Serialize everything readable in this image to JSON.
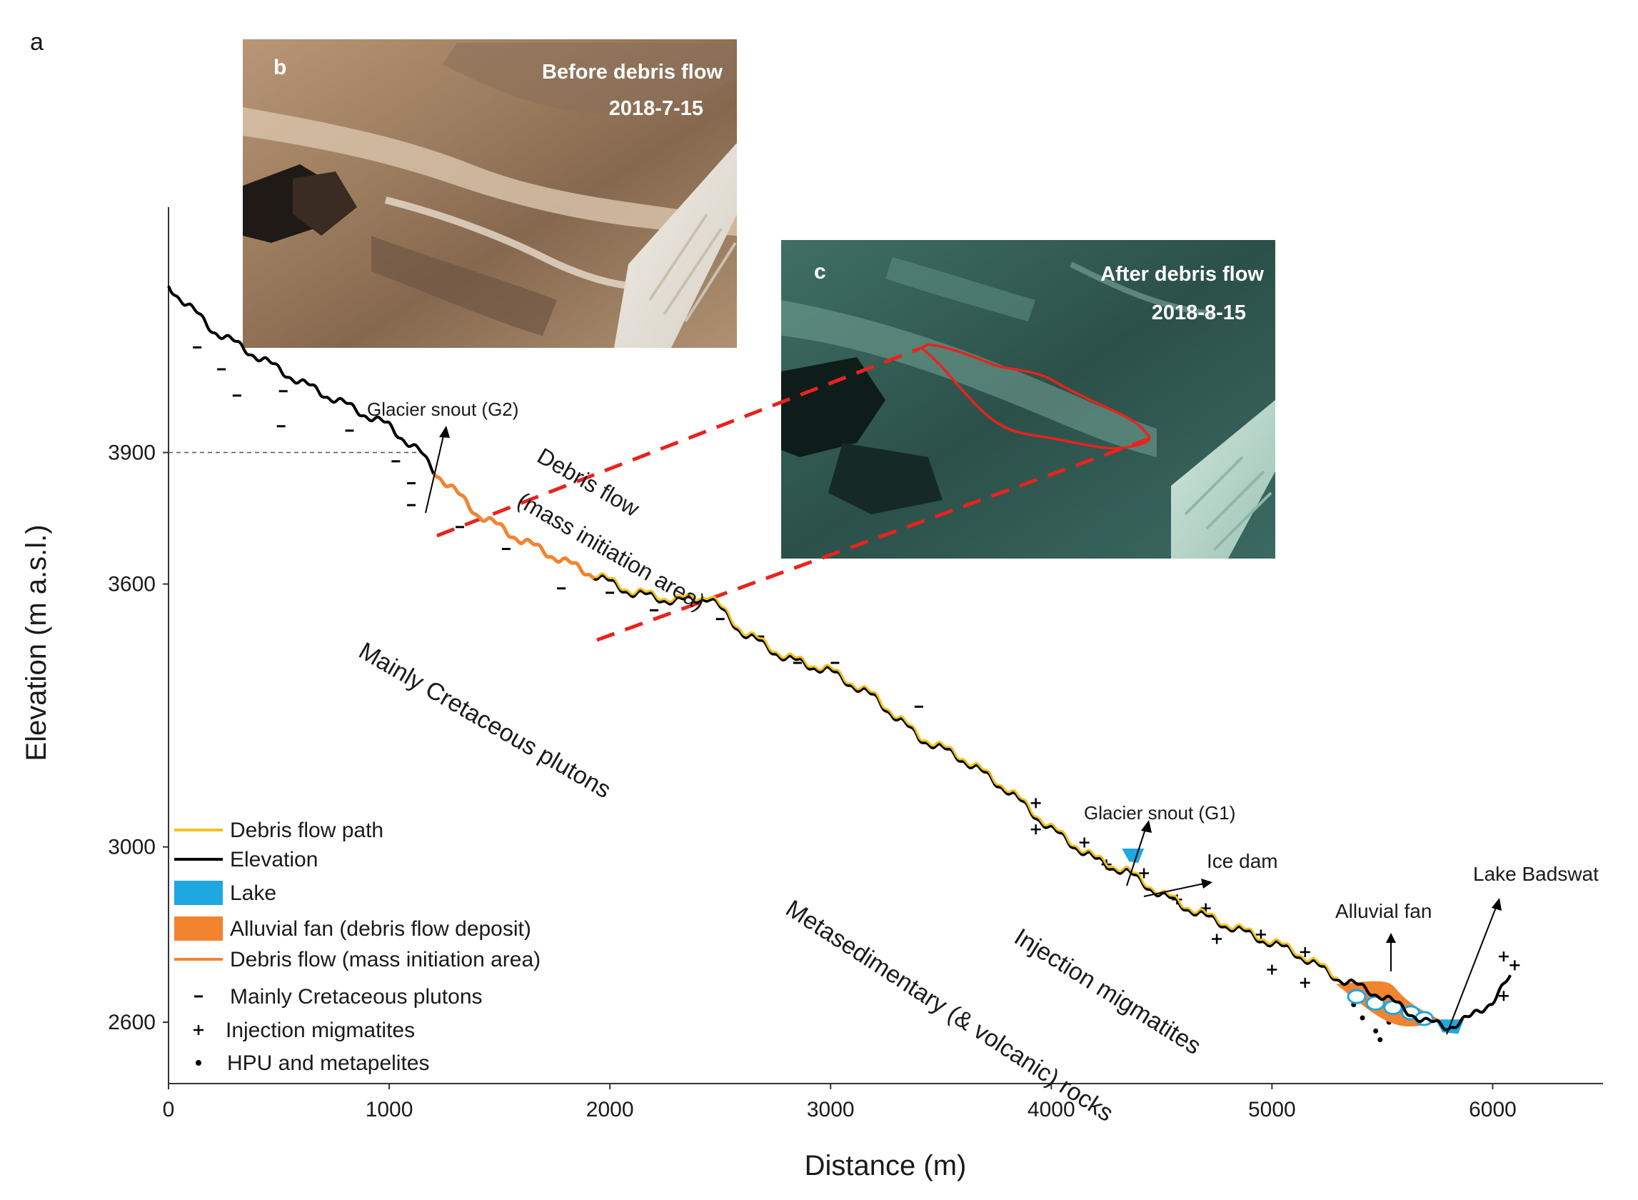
{
  "panel_label": "a",
  "inset_b": {
    "label": "b",
    "title": "Before debris flow",
    "date": "2018-7-15"
  },
  "inset_c": {
    "label": "c",
    "title": "After debris flow",
    "date": "2018-8-15"
  },
  "annotations": {
    "glacier_snout_g2": "Glacier snout (G2)",
    "debris_flow_line1": "Debris flow",
    "debris_flow_line2": "(mass initiation area)",
    "cretaceous": "Mainly Cretaceous plutons",
    "glacier_snout_g1": "Glacier snout (G1)",
    "ice_dam": "Ice dam",
    "lake_badswat": "Lake Badswat",
    "alluvial_fan": "Alluvial fan",
    "injection_migmatites": "Injection migmatites",
    "metasedimentary": "Metasedimentary (& volcanic) rocks"
  },
  "legend": [
    {
      "key": "debris-flow-path",
      "label": "Debris flow path",
      "color": "#f2c21b",
      "type": "line"
    },
    {
      "key": "elevation",
      "label": "Elevation",
      "color": "#000000",
      "type": "line"
    },
    {
      "key": "lake",
      "label": "Lake",
      "color": "#1ea7e1",
      "type": "box"
    },
    {
      "key": "alluvial-fan",
      "label": "Alluvial fan (debris flow deposit)",
      "color": "#f28430",
      "type": "box"
    },
    {
      "key": "debris-initiation",
      "label": "Debris flow (mass initiation area)",
      "color": "#f28430",
      "type": "line"
    },
    {
      "key": "cretaceous",
      "label": "Mainly Cretaceous plutons",
      "type": "dash"
    },
    {
      "key": "migmatites",
      "label": "Injection migmatites",
      "type": "plus"
    },
    {
      "key": "hpu",
      "label": "HPU and metapelites",
      "type": "dot"
    }
  ],
  "chart_data": {
    "type": "line",
    "xlabel": "Distance (m)",
    "ylabel": "Elevation (m a.s.l.)",
    "xlim": [
      0,
      6500
    ],
    "ylim": [
      2460,
      4460
    ],
    "xticks": [
      "0",
      "1000",
      "2000",
      "3000",
      "4000",
      "5000",
      "6000"
    ],
    "xtick_values": [
      0,
      1000,
      2000,
      3000,
      4000,
      5000,
      6000
    ],
    "yticks": [
      "2600",
      "3000",
      "3600",
      "3900"
    ],
    "ytick_values": [
      2600,
      3000,
      3600,
      3900
    ],
    "reference_line": {
      "elevation": 3900,
      "to_distance": 1140
    },
    "series": [
      {
        "name": "Elevation",
        "color": "#000000",
        "x": [
          0,
          200,
          400,
          600,
          800,
          1000,
          1140,
          1200,
          1400,
          1600,
          1800,
          1930,
          2100,
          2300,
          2450,
          2600,
          2800,
          3000,
          3200,
          3400,
          3600,
          3800,
          4000,
          4200,
          4350,
          4500,
          4700,
          4900,
          5100,
          5300,
          5500,
          5700,
          5800,
          5900,
          6000,
          6080
        ],
        "y": [
          4280,
          4180,
          4120,
          4060,
          4010,
          3960,
          3900,
          3860,
          3760,
          3700,
          3650,
          3620,
          3580,
          3560,
          3570,
          3490,
          3430,
          3400,
          3340,
          3250,
          3200,
          3130,
          3040,
          2970,
          2940,
          2890,
          2840,
          2800,
          2760,
          2700,
          2660,
          2600,
          2590,
          2610,
          2650,
          2700
        ]
      },
      {
        "name": "Debris flow (mass initiation area)",
        "color": "#f28430",
        "x_range": [
          1200,
          1930
        ]
      },
      {
        "name": "Debris flow path",
        "color": "#f2c21b",
        "x_range": [
          1930,
          5300
        ]
      }
    ],
    "symbols": {
      "cretaceous_dash": [
        [
          130,
          4140
        ],
        [
          240,
          4090
        ],
        [
          310,
          4030
        ],
        [
          520,
          4040
        ],
        [
          510,
          3960
        ],
        [
          820,
          3950
        ],
        [
          1030,
          3880
        ],
        [
          1100,
          3830
        ],
        [
          1100,
          3780
        ],
        [
          1320,
          3730
        ],
        [
          1530,
          3680
        ],
        [
          1780,
          3590
        ],
        [
          2000,
          3580
        ],
        [
          2200,
          3540
        ],
        [
          2500,
          3520
        ],
        [
          2680,
          3480
        ],
        [
          2850,
          3420
        ],
        [
          3020,
          3420
        ],
        [
          3400,
          3320
        ]
      ],
      "migmatite_plus": [
        [
          3930,
          3100
        ],
        [
          3930,
          3040
        ],
        [
          4150,
          3010
        ],
        [
          4250,
          2960
        ],
        [
          4420,
          2940
        ],
        [
          4570,
          2880
        ],
        [
          4700,
          2860
        ],
        [
          4750,
          2790
        ],
        [
          4950,
          2800
        ],
        [
          5000,
          2720
        ],
        [
          5150,
          2760
        ],
        [
          5150,
          2690
        ],
        [
          6050,
          2750
        ],
        [
          6100,
          2730
        ],
        [
          6050,
          2660
        ]
      ],
      "hpu_dot": [
        [
          5370,
          2640
        ],
        [
          5410,
          2610
        ],
        [
          5470,
          2580
        ],
        [
          5530,
          2600
        ],
        [
          5490,
          2560
        ],
        [
          5600,
          2610
        ]
      ]
    },
    "lakes": [
      {
        "name": "Ice dam lake",
        "x": [
          4320,
          4420
        ],
        "y": 2980
      },
      {
        "name": "Lake Badswat",
        "x": [
          5740,
          5870
        ],
        "y": 2590
      }
    ],
    "alluvial_fan": {
      "x": [
        5290,
        5760
      ],
      "y_top": 2700,
      "y_bottom": 2600
    }
  }
}
